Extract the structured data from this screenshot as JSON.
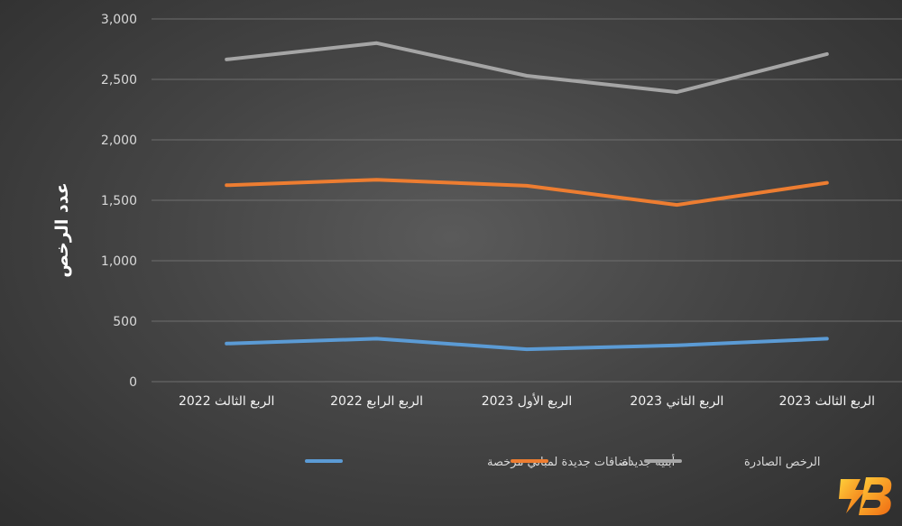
{
  "chart_data": {
    "type": "line",
    "categories": [
      "الربع الثالث 2022",
      "الربع الرابع 2022",
      "الربع الأول 2023",
      "الربع الثاني 2023",
      "الربع الثالث 2023"
    ],
    "series": [
      {
        "name": "اضافات جديدة لمباني مرخصة",
        "color": "#5b9bd5",
        "values": [
          315,
          355,
          268,
          300,
          355
        ]
      },
      {
        "name": "أبنية جديدة",
        "color": "#ed7d31",
        "values": [
          1625,
          1670,
          1620,
          1462,
          1645
        ]
      },
      {
        "name": "الرخص الصادرة",
        "color": "#a5a5a5",
        "values": [
          2665,
          2800,
          2530,
          2395,
          2710
        ]
      }
    ],
    "ylabel": "عدد الرخص",
    "ylim": [
      0,
      3000
    ],
    "yticks": [
      "0",
      "500",
      "1,000",
      "1,500",
      "2,000",
      "2,500",
      "3,000"
    ],
    "grid": true,
    "legend": "bottom"
  },
  "logo": {
    "label": "B"
  }
}
